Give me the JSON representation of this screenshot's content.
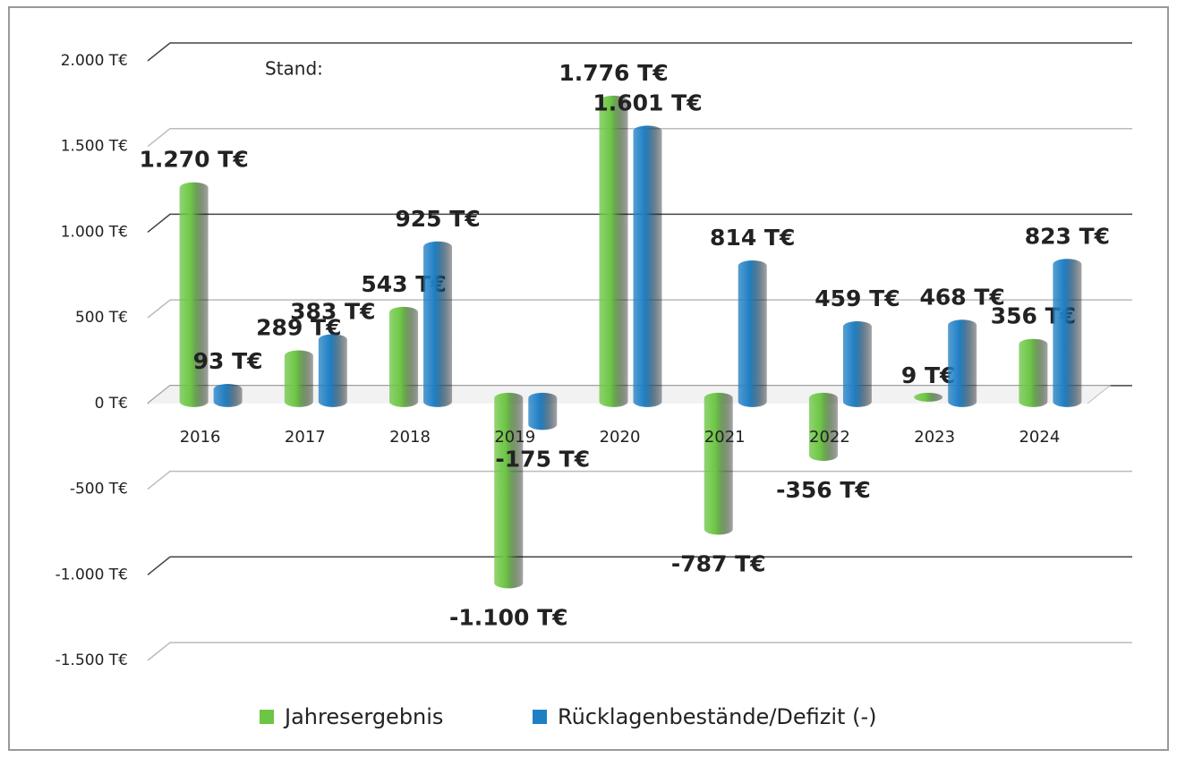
{
  "chart_data": {
    "type": "bar",
    "annotation": "Stand:",
    "categories": [
      "2016",
      "2017",
      "2018",
      "2019",
      "2020",
      "2021",
      "2022",
      "2023",
      "2024"
    ],
    "series": [
      {
        "name": "Jahresergebnis",
        "color": "#6cc644",
        "values": [
          1270,
          289,
          543,
          -1100,
          1776,
          -787,
          -356,
          9,
          356
        ],
        "value_labels": [
          "1.270 T€",
          "289 T€",
          "543 T€",
          "-1.100 T€",
          "1.776 T€",
          "-787 T€",
          "-356 T€",
          "9 T€",
          "356 T€"
        ]
      },
      {
        "name": "Rücklagenbestände/Defizit (-)",
        "color": "#1f7fc4",
        "values": [
          93,
          383,
          925,
          -175,
          1601,
          814,
          459,
          468,
          823
        ],
        "value_labels": [
          "93 T€",
          "383 T€",
          "925 T€",
          "-175 T€",
          "1.601 T€",
          "814 T€",
          "459 T€",
          "468 T€",
          "823 T€"
        ]
      }
    ],
    "ylim": [
      -1500,
      2000
    ],
    "yticks": [
      {
        "value": -1500,
        "label": "-1.500 T€"
      },
      {
        "value": -1000,
        "label": "-1.000 T€"
      },
      {
        "value": -500,
        "label": "-500 T€"
      },
      {
        "value": 0,
        "label": "0 T€"
      },
      {
        "value": 500,
        "label": "500 T€"
      },
      {
        "value": 1000,
        "label": "1.000 T€"
      },
      {
        "value": 1500,
        "label": "1.500 T€"
      },
      {
        "value": 2000,
        "label": "2.000 T€"
      }
    ],
    "grid": true,
    "legend": "bottom"
  }
}
